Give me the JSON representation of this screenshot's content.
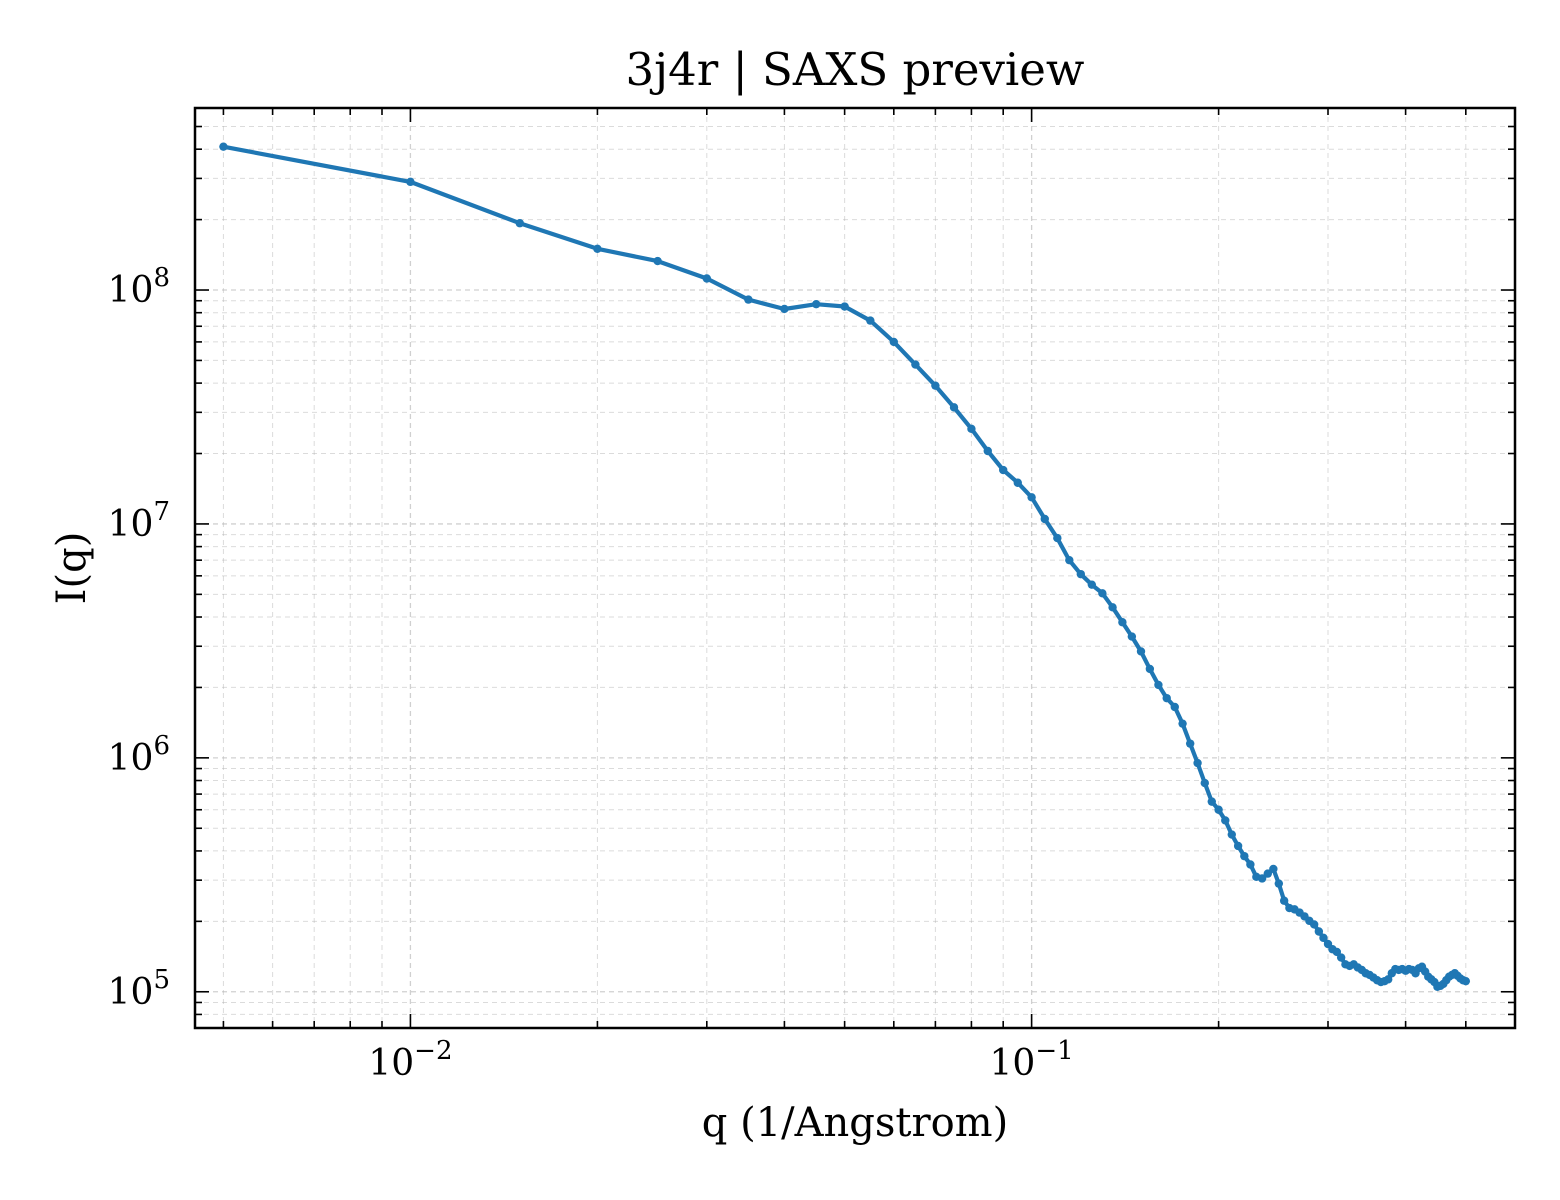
{
  "chart_data": {
    "type": "line",
    "title": "3j4r | SAXS preview",
    "xlabel": "q (1/Angstrom)",
    "ylabel": "I(q)",
    "xscale": "log",
    "yscale": "log",
    "xlim": [
      0.0045,
      0.6
    ],
    "ylim": [
      70000,
      600000000
    ],
    "grid": true,
    "line_color": "#1f77b4",
    "x_ticks": [
      {
        "value": 0.01,
        "base": "10",
        "exp": "−2"
      },
      {
        "value": 0.1,
        "base": "10",
        "exp": "−1"
      }
    ],
    "y_ticks": [
      {
        "value": 100000,
        "base": "10",
        "exp": "5"
      },
      {
        "value": 1000000,
        "base": "10",
        "exp": "6"
      },
      {
        "value": 10000000,
        "base": "10",
        "exp": "7"
      },
      {
        "value": 100000000,
        "base": "10",
        "exp": "8"
      }
    ],
    "series": [
      {
        "x": [
          0.005,
          0.01,
          0.015,
          0.02,
          0.025,
          0.03,
          0.035,
          0.04,
          0.045,
          0.05,
          0.055,
          0.06,
          0.065,
          0.07,
          0.075,
          0.08,
          0.085,
          0.09,
          0.095,
          0.1,
          0.105,
          0.11,
          0.115,
          0.12,
          0.125,
          0.13,
          0.135,
          0.14,
          0.145,
          0.15,
          0.155,
          0.16,
          0.165,
          0.17,
          0.175,
          0.18,
          0.185,
          0.19,
          0.195,
          0.2,
          0.205,
          0.21,
          0.215,
          0.22,
          0.225,
          0.23,
          0.235,
          0.24,
          0.245,
          0.25,
          0.255,
          0.26,
          0.265,
          0.27,
          0.275,
          0.28,
          0.285,
          0.29,
          0.295,
          0.3,
          0.305,
          0.31,
          0.315,
          0.32,
          0.325,
          0.33,
          0.335,
          0.34,
          0.345,
          0.35,
          0.355,
          0.36,
          0.365,
          0.37,
          0.375,
          0.38,
          0.385,
          0.39,
          0.395,
          0.4,
          0.405,
          0.41,
          0.415,
          0.42,
          0.425,
          0.43,
          0.435,
          0.44,
          0.445,
          0.45,
          0.455,
          0.46,
          0.465,
          0.47,
          0.475,
          0.48,
          0.485,
          0.49,
          0.495,
          0.5
        ],
        "y": [
          410000000,
          290000000,
          193000000,
          150000000,
          133000000,
          112000000,
          91000000,
          83000000,
          87000000,
          85000000,
          74000000,
          60000000,
          48000000,
          39000000,
          31500000,
          25500000,
          20500000,
          17000000,
          15000000,
          13000000,
          10500000,
          8700000,
          7000000,
          6100000,
          5500000,
          5050000,
          4400000,
          3800000,
          3300000,
          2850000,
          2400000,
          2050000,
          1800000,
          1650000,
          1400000,
          1150000,
          950000,
          780000,
          650000,
          600000,
          540000,
          470000,
          420000,
          380000,
          350000,
          310000,
          305000,
          320000,
          335000,
          290000,
          245000,
          228000,
          225000,
          218000,
          210000,
          201000,
          194000,
          181000,
          170000,
          160000,
          152000,
          148000,
          140000,
          131000,
          129000,
          131000,
          127000,
          124000,
          120000,
          118000,
          115000,
          112000,
          110000,
          111000,
          113000,
          120000,
          125000,
          124000,
          125000,
          123000,
          125000,
          124000,
          120000,
          126000,
          128000,
          122000,
          116000,
          113000,
          110000,
          105000,
          106000,
          108000,
          112000,
          116000,
          118000,
          120000,
          117000,
          114000,
          112000,
          111000
        ]
      }
    ]
  }
}
